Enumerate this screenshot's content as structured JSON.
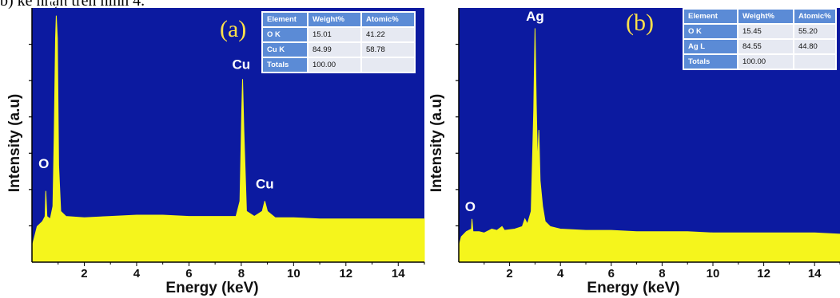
{
  "caption": "b) kể nhận trên hình 4.",
  "colors": {
    "plot_background": "#0c1aa0",
    "spectrum_fill": "#f5f51c",
    "table_header": "#5b8bd6",
    "table_cell": "#e6e9f2",
    "panel_label": "#ffe14a"
  },
  "chart_data": [
    {
      "type": "area",
      "panel_label": "(a)",
      "xlabel": "Energy (keV)",
      "ylabel": "Intensity (a.u)",
      "xlim": [
        0,
        15
      ],
      "ylim": [
        0,
        100
      ],
      "x_ticks": [
        "2",
        "4",
        "6",
        "8",
        "10",
        "12",
        "14"
      ],
      "series": [
        {
          "points": [
            [
              0.0,
              6
            ],
            [
              0.2,
              14
            ],
            [
              0.4,
              16
            ],
            [
              0.5,
              18
            ],
            [
              0.53,
              28
            ],
            [
              0.57,
              18
            ],
            [
              0.7,
              17
            ],
            [
              0.8,
              22
            ],
            [
              0.85,
              50
            ],
            [
              0.9,
              88
            ],
            [
              0.93,
              97
            ],
            [
              0.97,
              88
            ],
            [
              1.02,
              38
            ],
            [
              1.1,
              20
            ],
            [
              1.3,
              18
            ],
            [
              2,
              17.5
            ],
            [
              3,
              18
            ],
            [
              4,
              18.5
            ],
            [
              5,
              18.5
            ],
            [
              6,
              18
            ],
            [
              7,
              18
            ],
            [
              7.8,
              18
            ],
            [
              7.95,
              24
            ],
            [
              8.02,
              60
            ],
            [
              8.05,
              72
            ],
            [
              8.1,
              52
            ],
            [
              8.2,
              20
            ],
            [
              8.5,
              18
            ],
            [
              8.8,
              20
            ],
            [
              8.9,
              24
            ],
            [
              9.0,
              20
            ],
            [
              9.3,
              17.5
            ],
            [
              10,
              17.5
            ],
            [
              11,
              17
            ],
            [
              12,
              17
            ],
            [
              13,
              17
            ],
            [
              14,
              17
            ],
            [
              15,
              17
            ]
          ]
        }
      ],
      "peak_labels": [
        {
          "text": "Cu",
          "x": 0.95,
          "y": 100
        },
        {
          "text": "O",
          "x": 0.45,
          "y": 37
        },
        {
          "text": "Cu",
          "x": 8.0,
          "y": 76
        },
        {
          "text": "Cu",
          "x": 8.9,
          "y": 29
        }
      ],
      "table": {
        "headers": [
          "Element",
          "Weight%",
          "Atomic%"
        ],
        "rows": [
          [
            "O K",
            "15.01",
            "41.22"
          ],
          [
            "Cu K",
            "84.99",
            "58.78"
          ],
          [
            "Totals",
            "100.00",
            ""
          ]
        ]
      }
    },
    {
      "type": "area",
      "panel_label": "(b)",
      "xlabel": "Energy (keV)",
      "ylabel": "Intensity (a.u)",
      "xlim": [
        0,
        15
      ],
      "ylim": [
        0,
        100
      ],
      "x_ticks": [
        "2",
        "4",
        "6",
        "8",
        "10",
        "12",
        "14"
      ],
      "series": [
        {
          "points": [
            [
              0.0,
              6
            ],
            [
              0.1,
              10
            ],
            [
              0.3,
              12
            ],
            [
              0.5,
              13
            ],
            [
              0.52,
              17
            ],
            [
              0.56,
              12
            ],
            [
              0.8,
              12
            ],
            [
              1.0,
              11.5
            ],
            [
              1.3,
              13
            ],
            [
              1.5,
              12.5
            ],
            [
              1.7,
              14
            ],
            [
              1.8,
              12.5
            ],
            [
              2.2,
              13
            ],
            [
              2.5,
              14
            ],
            [
              2.6,
              17
            ],
            [
              2.7,
              15
            ],
            [
              2.85,
              20
            ],
            [
              2.95,
              60
            ],
            [
              3.0,
              92
            ],
            [
              3.05,
              62
            ],
            [
              3.1,
              38
            ],
            [
              3.15,
              52
            ],
            [
              3.2,
              32
            ],
            [
              3.3,
              22
            ],
            [
              3.4,
              16
            ],
            [
              3.6,
              14
            ],
            [
              4,
              13
            ],
            [
              5,
              12.5
            ],
            [
              6,
              12.5
            ],
            [
              7,
              12
            ],
            [
              8,
              12
            ],
            [
              9,
              12
            ],
            [
              10,
              11.5
            ],
            [
              11,
              11.5
            ],
            [
              12,
              11.5
            ],
            [
              13,
              11.5
            ],
            [
              14,
              11.5
            ],
            [
              15,
              11
            ]
          ]
        }
      ],
      "peak_labels": [
        {
          "text": "Ag",
          "x": 3.0,
          "y": 95
        },
        {
          "text": "O",
          "x": 0.45,
          "y": 20
        }
      ],
      "table": {
        "headers": [
          "Element",
          "Weight%",
          "Atomic%"
        ],
        "rows": [
          [
            "O K",
            "15.45",
            "55.20"
          ],
          [
            "Ag L",
            "84.55",
            "44.80"
          ],
          [
            "Totals",
            "100.00",
            ""
          ]
        ]
      }
    }
  ]
}
